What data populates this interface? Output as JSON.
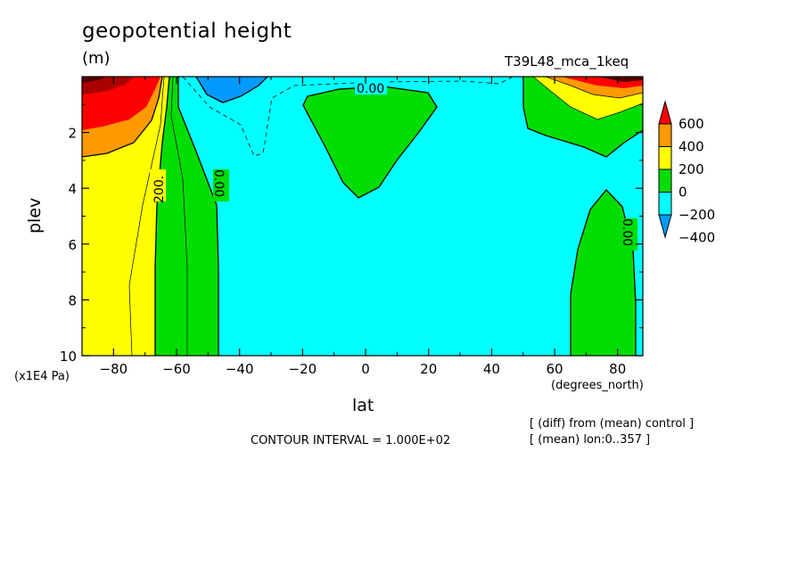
{
  "chart_data": {
    "type": "heatmap",
    "title": "geopotential height",
    "units": "(m)",
    "run_label": "T39L48_mca_1keq",
    "xlabel": "lat",
    "x_unit_label": "(degrees_north)",
    "ylabel": "plev",
    "y_unit_label": "(x1E4 Pa)",
    "xlim": [
      -90,
      88
    ],
    "ylim": [
      10,
      0
    ],
    "xticks": [
      "-80",
      "-60",
      "-40",
      "-20",
      "0",
      "20",
      "40",
      "60",
      "80"
    ],
    "yticks": [
      "2",
      "4",
      "6",
      "8",
      "10"
    ],
    "contour_labels": [
      "0.00",
      "200.",
      "0.00",
      "0.00"
    ],
    "contour_interval_label": "CONTOUR INTERVAL = 1.000E+02",
    "notes": [
      "[ (diff) from (mean) control ]",
      "[ (mean) lon:0..357 ]"
    ],
    "colorbar": {
      "labels": [
        "600",
        "400",
        "200",
        "0",
        "−200",
        "−400"
      ],
      "colors": [
        "#ff0000",
        "#ff9900",
        "#ffff00",
        "#00dd00",
        "#00ffff",
        "#0099ff"
      ]
    }
  }
}
